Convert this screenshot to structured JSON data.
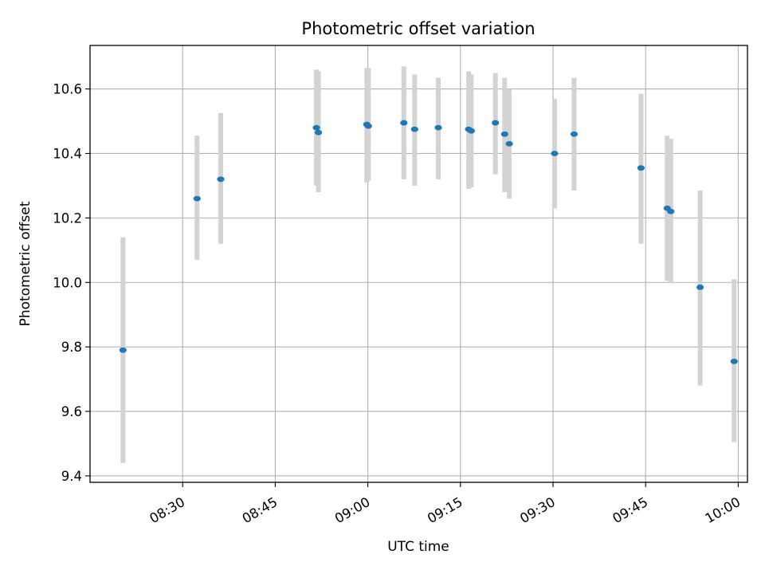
{
  "chart_data": {
    "type": "scatter",
    "title": "Photometric offset variation",
    "xlabel": "UTC time",
    "ylabel": "Photometric offset",
    "xlim": [
      "08:15:00",
      "10:01:30"
    ],
    "ylim": [
      9.38,
      10.735
    ],
    "grid": true,
    "x_ticks": [
      "08:30",
      "08:45",
      "09:00",
      "09:15",
      "09:30",
      "09:45",
      "10:00"
    ],
    "y_ticks": [
      "9.4",
      "9.6",
      "9.8",
      "10.0",
      "10.2",
      "10.4",
      "10.6"
    ],
    "colors": {
      "point": "#1f77b4",
      "errorbar": "#d3d3d3",
      "grid": "#b0b0b0"
    },
    "series": [
      {
        "points": [
          {
            "t": "08:20:20",
            "y": 9.79,
            "ylow": 9.44,
            "yhigh": 10.14
          },
          {
            "t": "08:32:20",
            "y": 10.26,
            "ylow": 10.07,
            "yhigh": 10.455
          },
          {
            "t": "08:36:10",
            "y": 10.32,
            "ylow": 10.12,
            "yhigh": 10.525
          },
          {
            "t": "08:51:40",
            "y": 10.48,
            "ylow": 10.3,
            "yhigh": 10.66
          },
          {
            "t": "08:52:00",
            "y": 10.465,
            "ylow": 10.28,
            "yhigh": 10.655
          },
          {
            "t": "08:59:50",
            "y": 10.49,
            "ylow": 10.31,
            "yhigh": 10.665
          },
          {
            "t": "09:00:05",
            "y": 10.485,
            "ylow": 10.315,
            "yhigh": 10.665
          },
          {
            "t": "09:05:50",
            "y": 10.495,
            "ylow": 10.32,
            "yhigh": 10.67
          },
          {
            "t": "09:07:35",
            "y": 10.475,
            "ylow": 10.3,
            "yhigh": 10.645
          },
          {
            "t": "09:11:25",
            "y": 10.48,
            "ylow": 10.32,
            "yhigh": 10.635
          },
          {
            "t": "09:16:20",
            "y": 10.475,
            "ylow": 10.29,
            "yhigh": 10.655
          },
          {
            "t": "09:16:45",
            "y": 10.47,
            "ylow": 10.295,
            "yhigh": 10.645
          },
          {
            "t": "09:20:40",
            "y": 10.495,
            "ylow": 10.335,
            "yhigh": 10.65
          },
          {
            "t": "09:22:10",
            "y": 10.46,
            "ylow": 10.28,
            "yhigh": 10.635
          },
          {
            "t": "09:22:55",
            "y": 10.43,
            "ylow": 10.26,
            "yhigh": 10.6
          },
          {
            "t": "09:30:15",
            "y": 10.4,
            "ylow": 10.23,
            "yhigh": 10.57
          },
          {
            "t": "09:33:25",
            "y": 10.46,
            "ylow": 10.285,
            "yhigh": 10.635
          },
          {
            "t": "09:44:15",
            "y": 10.355,
            "ylow": 10.12,
            "yhigh": 10.585
          },
          {
            "t": "09:48:30",
            "y": 10.23,
            "ylow": 10.005,
            "yhigh": 10.455
          },
          {
            "t": "09:49:05",
            "y": 10.22,
            "ylow": 10.0,
            "yhigh": 10.445
          },
          {
            "t": "09:53:50",
            "y": 9.985,
            "ylow": 9.68,
            "yhigh": 10.285
          },
          {
            "t": "09:59:20",
            "y": 9.755,
            "ylow": 9.505,
            "yhigh": 10.01
          }
        ]
      }
    ]
  }
}
